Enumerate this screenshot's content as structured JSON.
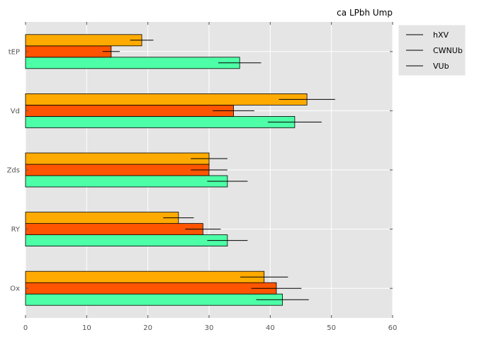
{
  "chart_data": {
    "type": "bar",
    "orientation": "horizontal",
    "title": "ca LPbh  Ump",
    "xlabel": "",
    "ylabel": "",
    "categories": [
      "Ox",
      "RY",
      "Zds",
      "Vd",
      "tEP"
    ],
    "xlim": [
      0,
      60
    ],
    "xticks": [
      0,
      10,
      20,
      30,
      40,
      50,
      60
    ],
    "grid": true,
    "legend_position": "right",
    "series": [
      {
        "name": "VUb",
        "color": "#4dffa6",
        "values": [
          42,
          33,
          33,
          44,
          35
        ],
        "errors": [
          4.3,
          3.3,
          3.3,
          4.4,
          3.5
        ]
      },
      {
        "name": "CWNUb",
        "color": "#ff5500",
        "values": [
          41,
          29,
          30,
          34,
          14
        ],
        "errors": [
          4.1,
          2.9,
          3.0,
          3.4,
          1.4
        ]
      },
      {
        "name": "hXV",
        "color": "#ffaa00",
        "values": [
          39,
          25,
          30,
          46,
          19
        ],
        "errors": [
          3.9,
          2.5,
          3.0,
          4.6,
          1.9
        ]
      }
    ],
    "legend_order": [
      "hXV",
      "CWNUb",
      "VUb"
    ]
  }
}
